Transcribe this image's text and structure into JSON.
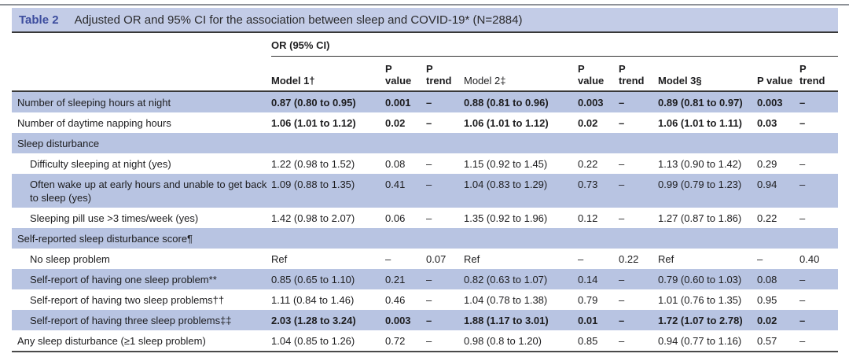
{
  "title": {
    "tag": "Table 2",
    "text": "Adjusted OR and 95% CI for the association between sleep and COVID-19* (N=2884)"
  },
  "colors": {
    "accent_blue": "#3d4d9e",
    "title_band_bg": "#c3cce7",
    "row_shade_bg": "#b8c4e2",
    "rule_dark": "#383838",
    "page_top_rule": "#8e9298"
  },
  "header": {
    "group": "OR (95% CI)",
    "columns": [
      {
        "label": "Model 1†",
        "bold": true
      },
      {
        "label": "P\nvalue",
        "bold": true
      },
      {
        "label": "P\ntrend",
        "bold": true
      },
      {
        "label": "Model 2‡",
        "bold": false
      },
      {
        "label": "P\nvalue",
        "bold": true
      },
      {
        "label": "P\ntrend",
        "bold": true
      },
      {
        "label": "Model 3§",
        "bold": true
      },
      {
        "label": "P value",
        "bold": true
      },
      {
        "label": "P\ntrend",
        "bold": true
      }
    ]
  },
  "rows": [
    {
      "label": "Number of sleeping hours at night",
      "indent": false,
      "section": false,
      "shaded": true,
      "bold": true,
      "cells": [
        "0.87 (0.80 to 0.95)",
        "0.001",
        "–",
        "0.88 (0.81 to 0.96)",
        "0.003",
        "–",
        "0.89 (0.81 to 0.97)",
        "0.003",
        "–"
      ]
    },
    {
      "label": "Number of daytime napping hours",
      "indent": false,
      "section": false,
      "shaded": false,
      "bold": true,
      "cells": [
        "1.06 (1.01 to 1.12)",
        "0.02",
        "–",
        "1.06 (1.01 to 1.12)",
        "0.02",
        "–",
        "1.06 (1.01 to 1.11)",
        "0.03",
        "–"
      ]
    },
    {
      "label": "Sleep disturbance",
      "indent": false,
      "section": true,
      "shaded": true,
      "bold": false,
      "cells": []
    },
    {
      "label": "Difficulty sleeping at night (yes)",
      "indent": true,
      "section": false,
      "shaded": false,
      "bold": false,
      "cells": [
        "1.22 (0.98 to 1.52)",
        "0.08",
        "–",
        "1.15 (0.92 to 1.45)",
        "0.22",
        "–",
        "1.13 (0.90 to 1.42)",
        "0.29",
        "–"
      ]
    },
    {
      "label": "Often wake up at early hours and unable to get back to sleep (yes)",
      "indent": true,
      "section": false,
      "shaded": true,
      "bold": false,
      "cells": [
        "1.09 (0.88 to 1.35)",
        "0.41",
        "–",
        "1.04 (0.83 to 1.29)",
        "0.73",
        "–",
        "0.99 (0.79 to 1.23)",
        "0.94",
        "–"
      ]
    },
    {
      "label": "Sleeping pill use >3 times/week (yes)",
      "indent": true,
      "section": false,
      "shaded": false,
      "bold": false,
      "cells": [
        "1.42 (0.98 to 2.07)",
        "0.06",
        "–",
        "1.35 (0.92 to 1.96)",
        "0.12",
        "–",
        "1.27 (0.87 to 1.86)",
        "0.22",
        "–"
      ]
    },
    {
      "label": "Self-reported sleep disturbance score¶",
      "indent": false,
      "section": true,
      "shaded": true,
      "bold": false,
      "cells": []
    },
    {
      "label": "No sleep problem",
      "indent": true,
      "section": false,
      "shaded": false,
      "bold": false,
      "cells": [
        "Ref",
        "–",
        "0.07",
        "Ref",
        "–",
        "0.22",
        "Ref",
        "–",
        "0.40"
      ]
    },
    {
      "label": "Self-report of having one sleep problem**",
      "indent": true,
      "section": false,
      "shaded": true,
      "bold": false,
      "cells": [
        "0.85 (0.65 to 1.10)",
        "0.21",
        "–",
        "0.82 (0.63 to 1.07)",
        "0.14",
        "–",
        "0.79 (0.60 to 1.03)",
        "0.08",
        "–"
      ]
    },
    {
      "label": "Self-report of having two sleep problems††",
      "indent": true,
      "section": false,
      "shaded": false,
      "bold": false,
      "cells": [
        "1.11 (0.84 to 1.46)",
        "0.46",
        "–",
        "1.04 (0.78 to 1.38)",
        "0.79",
        "–",
        "1.01 (0.76 to 1.35)",
        "0.95",
        "–"
      ]
    },
    {
      "label": "Self-report of having three sleep problems‡‡",
      "indent": true,
      "section": false,
      "shaded": true,
      "bold": true,
      "cells": [
        "2.03 (1.28 to 3.24)",
        "0.003",
        "–",
        "1.88 (1.17 to 3.01)",
        "0.01",
        "–",
        "1.72 (1.07 to 2.78)",
        "0.02",
        "–"
      ]
    },
    {
      "label": "Any sleep disturbance (≥1 sleep problem)",
      "indent": false,
      "section": false,
      "shaded": false,
      "bold": false,
      "cells": [
        "1.04 (0.85 to 1.26)",
        "0.72",
        "–",
        "0.98 (0.8 to 1.20)",
        "0.85",
        "–",
        "0.94 (0.77 to 1.16)",
        "0.57",
        "–"
      ]
    }
  ]
}
